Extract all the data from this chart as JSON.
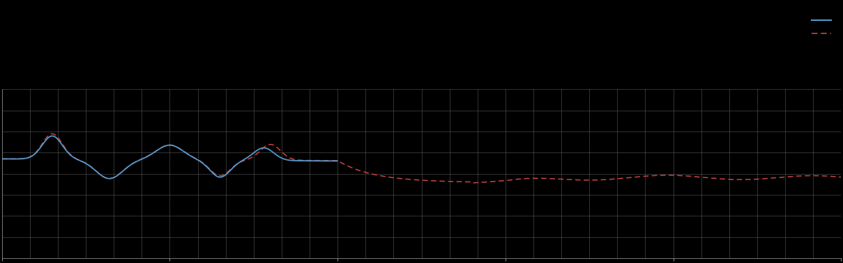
{
  "background_color": "#000000",
  "plot_bg_color": "#000000",
  "grid_color": "#666666",
  "text_color": "#aaaaaa",
  "blue_color": "#5599cc",
  "red_color": "#cc4444",
  "figsize": [
    12.09,
    3.78
  ],
  "dpi": 100,
  "n_x_grid": 30,
  "n_y_grid": 8,
  "ylim": [
    0,
    8
  ],
  "xlim": [
    0,
    30
  ],
  "blue_end_x": 12,
  "total_x": 30
}
